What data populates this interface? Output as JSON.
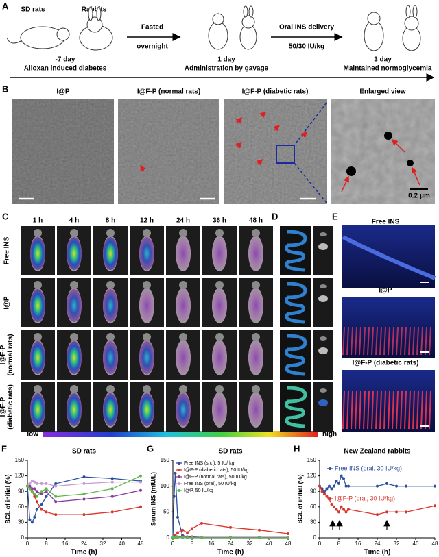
{
  "panel_a": {
    "label": "A",
    "animals": [
      "SD rats",
      "Rabbits"
    ],
    "steps": [
      {
        "top": "Fasted",
        "bottom": "overnight"
      },
      {
        "top": "Oral INS delivery",
        "bottom": "50/30 IU/kg"
      }
    ],
    "timeline": [
      {
        "day": "-7  day",
        "event": "Alloxan induced diabetes"
      },
      {
        "day": "1  day",
        "event": "Administration by gavage"
      },
      {
        "day": "3  day",
        "event": "Maintained normoglycemia"
      }
    ]
  },
  "panel_b": {
    "label": "B",
    "titles": [
      "I@P",
      "I@F-P (normal rats)",
      "I@F-P (diabetic rats)",
      "Enlarged view"
    ],
    "scale_bar": "0.2 μm"
  },
  "panel_c": {
    "label": "C",
    "times": [
      "1 h",
      "4 h",
      "8 h",
      "12 h",
      "24 h",
      "36 h",
      "48 h"
    ],
    "groups": [
      [
        "Free INS"
      ],
      [
        "I@P"
      ],
      [
        "I@F-P",
        "(normal rats)"
      ],
      [
        "I@F-P",
        "(diabetic rats)"
      ]
    ],
    "colorbar": {
      "low": "low",
      "high": "high"
    }
  },
  "panel_d": {
    "label": "D"
  },
  "panel_e": {
    "label": "E",
    "titles": [
      "Free INS",
      "I@P",
      "I@F-P (diabetic rats)"
    ]
  },
  "chart_data": [
    {
      "type": "line",
      "label": "F",
      "title": "SD rats",
      "xlabel": "Time (h)",
      "ylabel": "BGL of initial (%)",
      "x": [
        0,
        1,
        2,
        3,
        4,
        6,
        8,
        12,
        24,
        36,
        48
      ],
      "xlim": [
        0,
        48
      ],
      "xticks": [
        0,
        8,
        16,
        24,
        32,
        40,
        48
      ],
      "ylim": [
        0,
        150
      ],
      "yticks": [
        0,
        30,
        60,
        90,
        120,
        150
      ],
      "series": [
        {
          "color": "#2b4f9e",
          "values": [
            100,
            35,
            30,
            40,
            55,
            65,
            80,
            105,
            118,
            115,
            110
          ]
        },
        {
          "color": "#d9352b",
          "values": [
            100,
            95,
            90,
            80,
            70,
            55,
            50,
            45,
            45,
            50,
            60
          ]
        },
        {
          "color": "#8b3a9e",
          "values": [
            100,
            100,
            95,
            95,
            90,
            85,
            90,
            70,
            75,
            80,
            92
          ]
        },
        {
          "color": "#c79ad6",
          "values": [
            100,
            105,
            110,
            108,
            105,
            105,
            105,
            100,
            105,
            108,
            108
          ]
        },
        {
          "color": "#5cb84a",
          "values": [
            100,
            95,
            90,
            85,
            80,
            90,
            95,
            80,
            85,
            95,
            120
          ]
        }
      ]
    },
    {
      "type": "line",
      "label": "G",
      "title": "SD rats",
      "xlabel": "Time (h)",
      "ylabel": "Serum INS (mIU/L)",
      "x": [
        0,
        0.5,
        1,
        2,
        4,
        6,
        8,
        12,
        24,
        36,
        48
      ],
      "xlim": [
        0,
        48
      ],
      "xticks": [
        0,
        8,
        16,
        24,
        32,
        40,
        48
      ],
      "ylim": [
        0,
        150
      ],
      "yticks": [
        0,
        50,
        100,
        150
      ],
      "legend": "upper right",
      "series": [
        {
          "name": "Free INS (s.c.), 5  IU/ kg",
          "color": "#2b4f9e",
          "values": [
            0,
            80,
            125,
            40,
            5,
            2,
            1,
            0,
            0,
            0,
            0
          ]
        },
        {
          "name": "I@F-P (diabetic rats), 50 IU/kg",
          "color": "#d9352b",
          "values": [
            0,
            2,
            5,
            10,
            15,
            10,
            18,
            28,
            20,
            15,
            8
          ]
        },
        {
          "name": "I@F-P (normal rats), 50 IU/kg",
          "color": "#8b3a9e",
          "values": [
            0,
            0,
            1,
            2,
            3,
            2,
            2,
            1,
            1,
            1,
            1
          ]
        },
        {
          "name": "Free INS (oral), 50 IU/kg",
          "color": "#c79ad6",
          "values": [
            0,
            0,
            0,
            0,
            0,
            0,
            0,
            0,
            0,
            0,
            0
          ]
        },
        {
          "name": "I@P, 50 IU/kg",
          "color": "#5cb84a",
          "values": [
            0,
            0,
            0,
            1,
            1,
            0,
            0,
            0,
            0,
            0,
            0
          ]
        }
      ]
    },
    {
      "type": "line",
      "label": "H",
      "title": "New Zealand rabbits",
      "xlabel": "Time (h)",
      "ylabel": "BGL of initial (%)",
      "x": [
        0,
        1,
        2,
        3,
        4,
        5,
        6,
        7,
        8,
        9,
        10,
        11,
        12,
        24,
        28,
        32,
        36,
        48
      ],
      "xlim": [
        0,
        48
      ],
      "xticks": [
        0,
        8,
        16,
        24,
        32,
        40,
        48
      ],
      "ylim": [
        0,
        150
      ],
      "yticks": [
        0,
        30,
        60,
        90,
        120,
        150
      ],
      "legend": "inline",
      "series": [
        {
          "name": "Free INS (oral, 30 IU/kg)",
          "color": "#2b4f9e",
          "values": [
            100,
            95,
            90,
            95,
            100,
            95,
            100,
            110,
            105,
            120,
            115,
            100,
            100,
            100,
            105,
            100,
            100,
            100
          ]
        },
        {
          "name": "I@F-P (oral, 30 IU/kg)",
          "color": "#d9352b",
          "values": [
            100,
            90,
            85,
            80,
            75,
            65,
            60,
            55,
            50,
            60,
            55,
            50,
            55,
            45,
            50,
            50,
            50,
            62
          ]
        }
      ]
    }
  ]
}
